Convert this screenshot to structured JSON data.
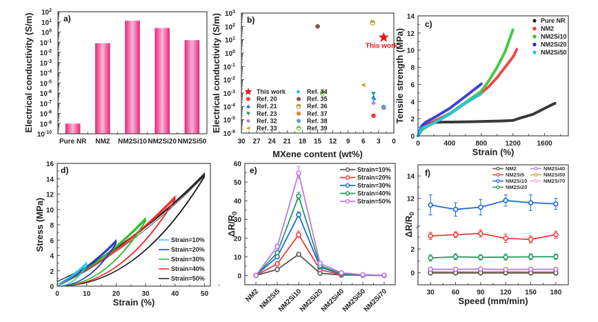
{
  "chart_data": [
    {
      "panel": "a)",
      "type": "bar",
      "title": "",
      "xlabel": "",
      "ylabel": "Electrical conductivity (S/m)",
      "yscale": "log",
      "ylim_exp": [
        -10,
        2
      ],
      "ytick_exps": [
        -10,
        -9,
        -8,
        -7,
        -6,
        -5,
        -4,
        -3,
        -2,
        -1,
        0,
        1,
        2
      ],
      "categories": [
        "Pure NR",
        "NM2",
        "NM2Si10",
        "NM2Si20",
        "NM2Si50"
      ],
      "values": [
        1e-09,
        0.08,
        13,
        2.5,
        0.16
      ],
      "bar_color": "#e8237a",
      "bar_highlight": "#fbb6d3"
    },
    {
      "panel": "b)",
      "type": "scatter",
      "xlabel": "MXene content (wt%)",
      "ylabel": "Electrical conductivity (S/m)",
      "yscale": "log",
      "ylim_exp": [
        -6,
        3
      ],
      "ytick_exps": [
        -6,
        -5,
        -4,
        -3,
        -2,
        -1,
        0,
        1,
        2,
        3
      ],
      "xlim": [
        30,
        0
      ],
      "xticks": [
        30,
        27,
        24,
        21,
        18,
        15,
        12,
        9,
        6,
        3,
        0
      ],
      "annotation": "This work",
      "annotation_color": "#e8141c",
      "legend_placement": "bottom-left",
      "series": [
        {
          "name": "This work",
          "marker": "star",
          "color": "#e8141c",
          "points": [
            [
              2,
              15
            ]
          ]
        },
        {
          "name": "Ref. 20",
          "marker": "circle",
          "color": "#ef3b3b",
          "points": [
            [
              4,
              2e-05
            ]
          ]
        },
        {
          "name": "Ref. 21",
          "marker": "triangle-up",
          "color": "#1e6fd9",
          "points": [
            [
              4,
              0.0005
            ]
          ]
        },
        {
          "name": "Ref. 23",
          "marker": "triangle-down",
          "color": "#1a9e6a",
          "points": [
            [
              4,
              0.0009
            ]
          ]
        },
        {
          "name": "Ref. 32",
          "marker": "diamond",
          "color": "#b67be6",
          "points": [
            [
              4,
              0.00018
            ]
          ]
        },
        {
          "name": "Ref. 33",
          "marker": "triangle-left",
          "color": "#e0a020",
          "points": [
            [
              6,
              0.004
            ]
          ]
        },
        {
          "name": "Ref. 34",
          "marker": "triangle-right",
          "color": "#22a8d8",
          "points": [
            [
              3.8,
              0.00035
            ]
          ]
        },
        {
          "name": "Ref. 35",
          "marker": "circle",
          "color": "#8a5050",
          "points": [
            [
              15,
              100
            ]
          ]
        },
        {
          "name": "Ref. 36",
          "marker": "half-circle",
          "color": "#b8a040",
          "points": [
            [
              4.2,
              190
            ]
          ]
        },
        {
          "name": "Ref. 37",
          "marker": "circle",
          "color": "#f07a2a",
          "points": [
            [
              2,
              8e-05
            ]
          ]
        },
        {
          "name": "Ref. 38",
          "marker": "circle",
          "color": "#5a9ad8",
          "points": [
            [
              2,
              9e-05
            ]
          ]
        },
        {
          "name": "Ref. 39",
          "marker": "half-circle",
          "color": "#7cc840",
          "points": [
            [
              14,
              0.001
            ]
          ]
        }
      ]
    },
    {
      "panel": "c)",
      "type": "line",
      "xlabel": "Strain (%)",
      "ylabel": "Tensile strength (MPa)",
      "xlim": [
        0,
        1900
      ],
      "ylim": [
        0,
        14
      ],
      "xticks": [
        0,
        400,
        800,
        1200,
        1600
      ],
      "yticks": [
        0,
        2,
        4,
        6,
        8,
        10,
        12,
        14
      ],
      "legend_placement": "top-right",
      "series": [
        {
          "name": "Pure NR",
          "color": "#222222",
          "points": [
            [
              0,
              0
            ],
            [
              50,
              0.8
            ],
            [
              100,
              1.3
            ],
            [
              200,
              1.55
            ],
            [
              300,
              1.6
            ],
            [
              500,
              1.62
            ],
            [
              700,
              1.65
            ],
            [
              900,
              1.7
            ],
            [
              1100,
              1.75
            ],
            [
              1200,
              1.8
            ],
            [
              1300,
              2.1
            ],
            [
              1450,
              2.5
            ],
            [
              1600,
              3.2
            ],
            [
              1730,
              3.8
            ]
          ]
        },
        {
          "name": "NM2",
          "color": "#ef3333",
          "points": [
            [
              0,
              0
            ],
            [
              50,
              0.9
            ],
            [
              100,
              1.3
            ],
            [
              200,
              1.7
            ],
            [
              400,
              2.6
            ],
            [
              600,
              3.8
            ],
            [
              800,
              5.0
            ],
            [
              900,
              5.8
            ],
            [
              1000,
              6.8
            ],
            [
              1100,
              8.0
            ],
            [
              1200,
              9.2
            ],
            [
              1250,
              10.1
            ]
          ]
        },
        {
          "name": "NM2Si10",
          "color": "#33c133",
          "points": [
            [
              0,
              0
            ],
            [
              50,
              0.7
            ],
            [
              100,
              1.0
            ],
            [
              200,
              1.5
            ],
            [
              400,
              2.6
            ],
            [
              600,
              3.9
            ],
            [
              800,
              5.2
            ],
            [
              900,
              6.5
            ],
            [
              1000,
              8.0
            ],
            [
              1100,
              9.8
            ],
            [
              1200,
              12.4
            ]
          ]
        },
        {
          "name": "NM2Si20",
          "color": "#2a2ad0",
          "points": [
            [
              0,
              0
            ],
            [
              50,
              1.2
            ],
            [
              100,
              1.6
            ],
            [
              200,
              2.1
            ],
            [
              400,
              3.2
            ],
            [
              600,
              4.6
            ],
            [
              800,
              6.05
            ]
          ]
        },
        {
          "name": "NM2Si50",
          "color": "#25c8e8",
          "points": [
            [
              0,
              0
            ],
            [
              50,
              0.9
            ],
            [
              100,
              1.1
            ],
            [
              200,
              1.5
            ],
            [
              400,
              2.5
            ],
            [
              600,
              3.8
            ],
            [
              800,
              4.9
            ]
          ]
        }
      ]
    },
    {
      "panel": "d)",
      "type": "line",
      "xlabel": "Strain (%)",
      "ylabel": "Stress (MPa)",
      "xlim": [
        0,
        52
      ],
      "ylim": [
        0,
        16
      ],
      "xticks": [
        0,
        10,
        20,
        30,
        40,
        50
      ],
      "yticks": [
        0,
        2,
        4,
        6,
        8,
        10,
        12,
        14,
        16
      ],
      "legend_placement": "bottom-right",
      "series": [
        {
          "name": "Strain=50%",
          "color": "#1a1a1a",
          "max_strain": 50,
          "max_stress": 14.4
        },
        {
          "name": "Strain=40%",
          "color": "#ee2222",
          "max_strain": 40,
          "max_stress": 11.4
        },
        {
          "name": "Strain=30%",
          "color": "#22bb22",
          "max_strain": 30,
          "max_stress": 8.6
        },
        {
          "name": "Strain=20%",
          "color": "#2233cc",
          "max_strain": 20,
          "max_stress": 5.7
        },
        {
          "name": "Strain=10%",
          "color": "#33ccee",
          "max_strain": 10,
          "max_stress": 2.8
        }
      ],
      "legend_order": [
        "Strain=10%",
        "Strain=20%",
        "Strain=30%",
        "Strain=40%",
        "Strain=50%"
      ]
    },
    {
      "panel": "e)",
      "type": "line",
      "xlabel": "",
      "ylabel": "ΔR/R0",
      "ylim": [
        -5,
        60
      ],
      "yticks": [
        0,
        10,
        20,
        30,
        40,
        50,
        60
      ],
      "categories": [
        "NM2",
        "NM2Si5",
        "NM2Si10",
        "NM2Si20",
        "NM2Si40",
        "NM2Si50",
        "NM2Si70"
      ],
      "legend_placement": "top-right",
      "series": [
        {
          "name": "Strain=10%",
          "color": "#555555",
          "values": [
            0,
            3.2,
            11.3,
            1.2,
            0.2,
            0.1,
            0
          ],
          "errors": [
            0.2,
            0.4,
            0.6,
            0.3,
            0.1,
            0.1,
            0.1
          ]
        },
        {
          "name": "Strain=20%",
          "color": "#ee3b3b",
          "values": [
            0,
            6.2,
            21.8,
            3.0,
            0.4,
            0.2,
            0
          ],
          "errors": [
            0.2,
            0.6,
            2.0,
            0.4,
            0.1,
            0.1,
            0.1
          ]
        },
        {
          "name": "Strain=30%",
          "color": "#1e6ad8",
          "values": [
            0,
            10.0,
            32.5,
            4.5,
            0.7,
            0.2,
            0
          ],
          "errors": [
            0.2,
            0.8,
            1.6,
            0.5,
            0.1,
            0.1,
            0.1
          ]
        },
        {
          "name": "Strain=40%",
          "color": "#1f9a5a",
          "values": [
            0,
            12.2,
            42.5,
            5.2,
            0.9,
            0.3,
            0
          ],
          "errors": [
            0.2,
            0.9,
            2.0,
            0.5,
            0.2,
            0.1,
            0.1
          ]
        },
        {
          "name": "Strain=50%",
          "color": "#b77ae8",
          "values": [
            0,
            15.5,
            54.8,
            6.5,
            1.4,
            0.4,
            0.1
          ],
          "errors": [
            0.2,
            1.3,
            3.5,
            0.6,
            0.2,
            0.1,
            0.1
          ]
        }
      ]
    },
    {
      "panel": "f)",
      "type": "line",
      "xlabel": "Speed (mm/min)",
      "ylabel": "ΔR/R0",
      "x": [
        30,
        60,
        90,
        120,
        150,
        180
      ],
      "xlim": [
        15,
        195
      ],
      "xticks": [
        30,
        60,
        90,
        120,
        150,
        180
      ],
      "y_axis_break": {
        "lower": [
          -1,
          3.8
        ],
        "upper": [
          9.5,
          15
        ]
      },
      "yticks": [
        0,
        2,
        12,
        14
      ],
      "legend_placement": "top-right",
      "series": [
        {
          "name": "NM2",
          "color": "#555555",
          "values": [
            0,
            0,
            0,
            0,
            0,
            0
          ],
          "errors": [
            0.05,
            0.05,
            0.05,
            0.05,
            0.05,
            0.05
          ]
        },
        {
          "name": "NM2Si5",
          "color": "#ee3b3b",
          "values": [
            3.1,
            3.2,
            3.3,
            2.9,
            2.8,
            3.2
          ],
          "errors": [
            0.3,
            0.25,
            0.3,
            0.35,
            0.3,
            0.3
          ]
        },
        {
          "name": "NM2Si10",
          "color": "#1e6ad8",
          "values": [
            11.4,
            11.0,
            11.2,
            11.8,
            11.6,
            11.5
          ],
          "errors": [
            0.9,
            0.6,
            0.7,
            0.5,
            0.7,
            0.5
          ]
        },
        {
          "name": "NM2Si20",
          "color": "#1f9a5a",
          "values": [
            1.25,
            1.35,
            1.3,
            1.32,
            1.35,
            1.35
          ],
          "errors": [
            0.25,
            0.25,
            0.22,
            0.25,
            0.25,
            0.22
          ]
        },
        {
          "name": "NM2Si40",
          "color": "#b77ae8",
          "values": [
            0.3,
            0.3,
            0.32,
            0.28,
            0.3,
            0.3
          ],
          "errors": [
            0.05,
            0.05,
            0.05,
            0.05,
            0.05,
            0.05
          ]
        },
        {
          "name": "NM2Si50",
          "color": "#e0a020",
          "values": [
            0.08,
            0.08,
            0.08,
            0.1,
            0.08,
            0.08
          ],
          "errors": [
            0.04,
            0.04,
            0.04,
            0.04,
            0.04,
            0.04
          ]
        },
        {
          "name": "NM2Si70",
          "color": "#f7a8c8",
          "values": [
            -0.02,
            -0.02,
            -0.02,
            -0.02,
            -0.02,
            -0.02
          ],
          "errors": [
            0.04,
            0.04,
            0.04,
            0.04,
            0.04,
            0.04
          ]
        }
      ]
    }
  ]
}
